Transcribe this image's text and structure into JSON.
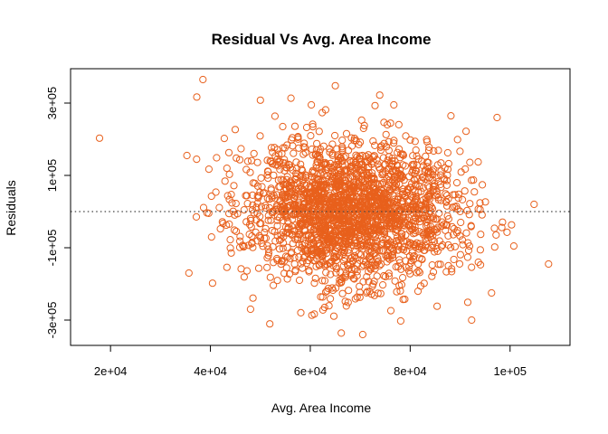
{
  "chart_data": {
    "type": "scatter",
    "title": "Residual Vs Avg. Area Income",
    "xlabel": "Avg. Area Income",
    "ylabel": "Residuals",
    "xlim": [
      12000,
      112000
    ],
    "ylim": [
      -370000,
      395000
    ],
    "x_ticks": [
      20000,
      40000,
      60000,
      80000,
      100000
    ],
    "x_tick_labels": [
      "2e+04",
      "4e+04",
      "6e+04",
      "8e+04",
      "1e+05"
    ],
    "y_ticks": [
      -300000,
      -100000,
      100000,
      300000
    ],
    "y_tick_labels": [
      "-3e+05",
      "-1e+05",
      "1e+05",
      "3e+05"
    ],
    "reference_line": {
      "y": 0,
      "style": "dotted"
    },
    "point_color": "#E8601C",
    "marker": "open-circle",
    "grid": false,
    "cluster": {
      "x_mean": 68600,
      "x_sd": 10600,
      "y_mean": 0,
      "y_sd": 100000,
      "n": 2200
    },
    "outliers": [
      {
        "x": 17800,
        "y": 203000
      },
      {
        "x": 38500,
        "y": 365000
      },
      {
        "x": 107700,
        "y": -145000
      },
      {
        "x": 66200,
        "y": -336000
      },
      {
        "x": 92300,
        "y": -300000
      },
      {
        "x": 104800,
        "y": 20000
      },
      {
        "x": 35300,
        "y": 155000
      },
      {
        "x": 35700,
        "y": -170000
      },
      {
        "x": 65000,
        "y": 348000
      },
      {
        "x": 70500,
        "y": -340000
      },
      {
        "x": 97400,
        "y": 260000
      },
      {
        "x": 50000,
        "y": 308000
      },
      {
        "x": 96300,
        "y": -225000
      },
      {
        "x": 73900,
        "y": 322000
      },
      {
        "x": 43700,
        "y": 163000
      }
    ]
  }
}
